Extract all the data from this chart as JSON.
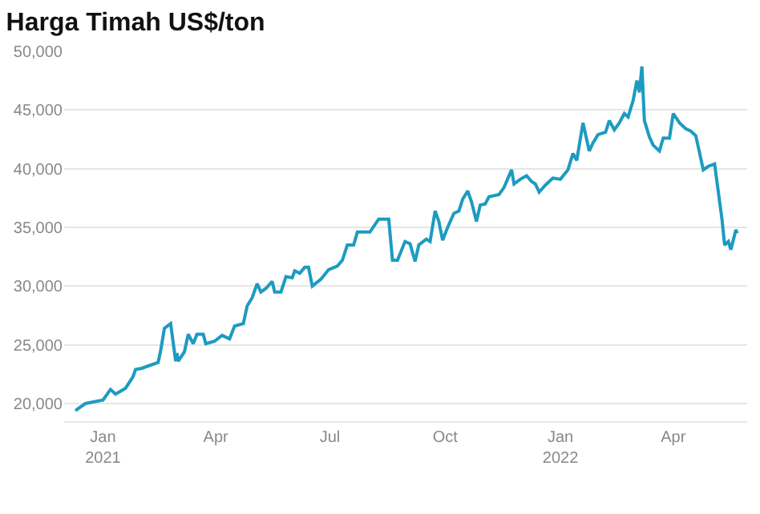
{
  "chart_data": {
    "type": "line",
    "title": "Harga Timah US$/ton",
    "x": [
      "2020-12-10",
      "2020-12-18",
      "2021-01-01",
      "2021-01-07",
      "2021-01-11",
      "2021-01-19",
      "2021-01-25",
      "2021-01-27",
      "2021-02-01",
      "2021-02-14",
      "2021-02-16",
      "2021-02-19",
      "2021-02-24",
      "2021-02-28",
      "2021-03-01",
      "2021-03-02",
      "2021-03-07",
      "2021-03-10",
      "2021-03-14",
      "2021-03-17",
      "2021-03-22",
      "2021-03-24",
      "2021-03-31",
      "2021-04-06",
      "2021-04-12",
      "2021-04-16",
      "2021-04-23",
      "2021-04-26",
      "2021-04-30",
      "2021-05-04",
      "2021-05-07",
      "2021-05-11",
      "2021-05-16",
      "2021-05-18",
      "2021-05-23",
      "2021-05-27",
      "2021-06-01",
      "2021-06-03",
      "2021-06-07",
      "2021-06-11",
      "2021-06-14",
      "2021-06-17",
      "2021-06-24",
      "2021-06-30",
      "2021-07-07",
      "2021-07-11",
      "2021-07-15",
      "2021-07-20",
      "2021-07-23",
      "2021-08-02",
      "2021-08-09",
      "2021-08-13",
      "2021-08-17",
      "2021-08-20",
      "2021-08-24",
      "2021-08-30",
      "2021-09-03",
      "2021-09-07",
      "2021-09-10",
      "2021-09-16",
      "2021-09-19",
      "2021-09-23",
      "2021-09-26",
      "2021-09-29",
      "2021-10-03",
      "2021-10-08",
      "2021-10-12",
      "2021-10-15",
      "2021-10-19",
      "2021-10-22",
      "2021-10-26",
      "2021-10-29",
      "2021-11-02",
      "2021-11-05",
      "2021-11-13",
      "2021-11-17",
      "2021-11-23",
      "2021-11-25",
      "2021-11-30",
      "2021-12-05",
      "2021-12-09",
      "2021-12-12",
      "2021-12-15",
      "2021-12-20",
      "2021-12-26",
      "2022-01-01",
      "2022-01-07",
      "2022-01-11",
      "2022-01-14",
      "2022-01-19",
      "2022-01-24",
      "2022-01-27",
      "2022-01-31",
      "2022-02-06",
      "2022-02-09",
      "2022-02-13",
      "2022-02-17",
      "2022-02-21",
      "2022-02-24",
      "2022-02-28",
      "2022-03-03",
      "2022-03-05",
      "2022-03-07",
      "2022-03-09",
      "2022-03-13",
      "2022-03-16",
      "2022-03-21",
      "2022-03-24",
      "2022-03-29",
      "2022-04-01",
      "2022-04-06",
      "2022-04-11",
      "2022-04-15",
      "2022-04-19",
      "2022-04-25",
      "2022-04-29",
      "2022-05-04",
      "2022-05-10",
      "2022-05-12",
      "2022-05-15",
      "2022-05-17",
      "2022-05-21",
      "2022-05-22"
    ],
    "series": [
      {
        "color": "#1d9bc0",
        "values": [
          19400,
          20000,
          20300,
          21200,
          20800,
          21300,
          22300,
          22900,
          23000,
          23500,
          24500,
          26400,
          26800,
          23600,
          24300,
          23600,
          24400,
          25900,
          25100,
          25900,
          25900,
          25100,
          25300,
          25800,
          25500,
          26600,
          26800,
          28300,
          29000,
          30200,
          29500,
          29800,
          30400,
          29500,
          29500,
          30800,
          30700,
          31300,
          31100,
          31600,
          31600,
          30000,
          30600,
          31400,
          31700,
          32200,
          33500,
          33500,
          34600,
          34600,
          35700,
          35700,
          35700,
          32200,
          32200,
          33800,
          33600,
          32100,
          33500,
          34000,
          33800,
          36400,
          35500,
          33900,
          35000,
          36200,
          36400,
          37400,
          38100,
          37200,
          35500,
          36900,
          37000,
          37600,
          37800,
          38400,
          39900,
          38700,
          39100,
          39400,
          38900,
          38700,
          38000,
          38600,
          39200,
          39100,
          39900,
          41300,
          40700,
          43900,
          41500,
          42200,
          42900,
          43100,
          44100,
          43300,
          43900,
          44700,
          44400,
          45800,
          47500,
          46500,
          48700,
          44100,
          42700,
          42000,
          41500,
          42600,
          42600,
          44700,
          43900,
          43400,
          43200,
          42800,
          39900,
          40200,
          40400,
          35600,
          33500,
          33800,
          33100,
          34800,
          34500
        ]
      }
    ],
    "xlim": [
      "2020-12-01",
      "2022-05-30"
    ],
    "xticks": [
      {
        "value": "2021-01-01",
        "label": "Jan\n2021"
      },
      {
        "value": "2021-04-01",
        "label": "Apr"
      },
      {
        "value": "2021-07-01",
        "label": "Jul"
      },
      {
        "value": "2021-10-01",
        "label": "Oct"
      },
      {
        "value": "2022-01-01",
        "label": "Jan\n2022"
      },
      {
        "value": "2022-04-01",
        "label": "Apr"
      }
    ],
    "ylim": [
      18500,
      50000
    ],
    "yticks": [
      {
        "value": 20000,
        "label": "20,000"
      },
      {
        "value": 25000,
        "label": "25,000"
      },
      {
        "value": 30000,
        "label": "30,000"
      },
      {
        "value": 35000,
        "label": "35,000"
      },
      {
        "value": 40000,
        "label": "40,000"
      },
      {
        "value": 45000,
        "label": "45,000"
      },
      {
        "value": 50000,
        "label": "50,000"
      }
    ],
    "grid": "y"
  }
}
